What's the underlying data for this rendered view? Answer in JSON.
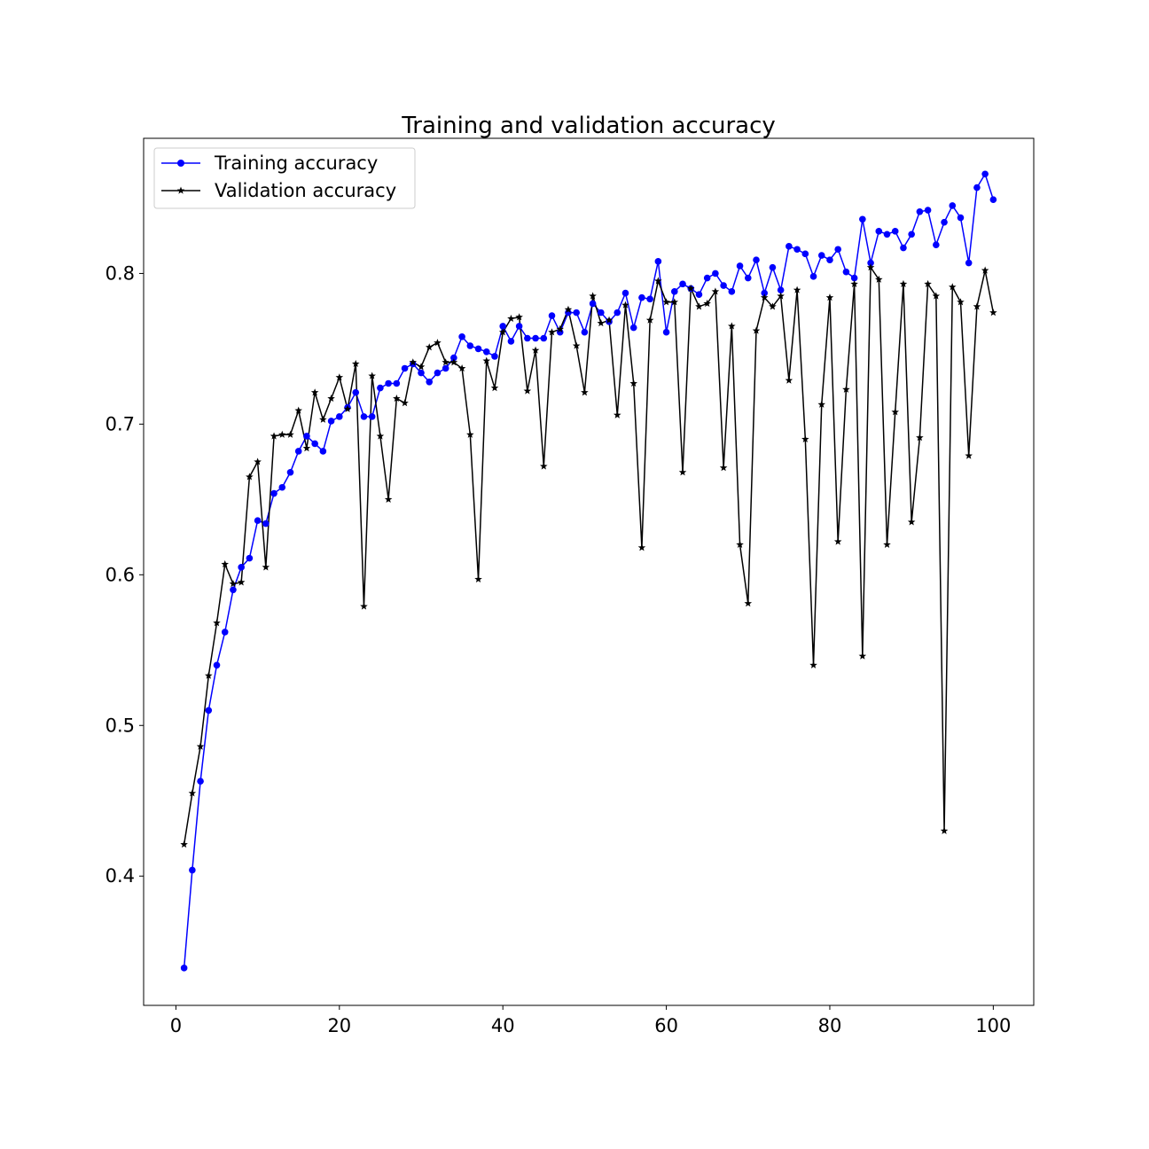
{
  "chart_data": {
    "type": "line",
    "title": "Training and validation accuracy",
    "xlabel": "",
    "ylabel": "",
    "xlim": [
      -3.95,
      104.95
    ],
    "ylim": [
      0.3142,
      0.8897
    ],
    "x_ticks": [
      0,
      20,
      40,
      60,
      80,
      100
    ],
    "y_ticks": [
      0.4,
      0.5,
      0.6,
      0.7,
      0.8
    ],
    "x_tick_labels": [
      "0",
      "20",
      "40",
      "60",
      "80",
      "100"
    ],
    "y_tick_labels": [
      "0.4",
      "0.5",
      "0.6",
      "0.7",
      "0.8"
    ],
    "grid": false,
    "legend_position": "top-left",
    "x": [
      1,
      2,
      3,
      4,
      5,
      6,
      7,
      8,
      9,
      10,
      11,
      12,
      13,
      14,
      15,
      16,
      17,
      18,
      19,
      20,
      21,
      22,
      23,
      24,
      25,
      26,
      27,
      28,
      29,
      30,
      31,
      32,
      33,
      34,
      35,
      36,
      37,
      38,
      39,
      40,
      41,
      42,
      43,
      44,
      45,
      46,
      47,
      48,
      49,
      50,
      51,
      52,
      53,
      54,
      55,
      56,
      57,
      58,
      59,
      60,
      61,
      62,
      63,
      64,
      65,
      66,
      67,
      68,
      69,
      70,
      71,
      72,
      73,
      74,
      75,
      76,
      77,
      78,
      79,
      80,
      81,
      82,
      83,
      84,
      85,
      86,
      87,
      88,
      89,
      90,
      91,
      92,
      93,
      94,
      95,
      96,
      97,
      98,
      99,
      100
    ],
    "series": [
      {
        "name": "Training accuracy",
        "color": "#0000ff",
        "marker": "circle",
        "values": [
          0.339,
          0.404,
          0.463,
          0.51,
          0.54,
          0.562,
          0.59,
          0.605,
          0.611,
          0.636,
          0.634,
          0.654,
          0.658,
          0.668,
          0.682,
          0.692,
          0.687,
          0.682,
          0.702,
          0.705,
          0.711,
          0.721,
          0.705,
          0.705,
          0.724,
          0.727,
          0.727,
          0.737,
          0.74,
          0.734,
          0.728,
          0.734,
          0.737,
          0.744,
          0.758,
          0.752,
          0.75,
          0.748,
          0.745,
          0.765,
          0.755,
          0.765,
          0.757,
          0.757,
          0.757,
          0.772,
          0.761,
          0.774,
          0.774,
          0.761,
          0.78,
          0.774,
          0.768,
          0.774,
          0.787,
          0.764,
          0.784,
          0.783,
          0.808,
          0.761,
          0.788,
          0.793,
          0.79,
          0.786,
          0.797,
          0.8,
          0.792,
          0.788,
          0.805,
          0.797,
          0.809,
          0.787,
          0.804,
          0.789,
          0.818,
          0.816,
          0.813,
          0.798,
          0.812,
          0.809,
          0.816,
          0.801,
          0.797,
          0.836,
          0.807,
          0.828,
          0.826,
          0.828,
          0.817,
          0.826,
          0.841,
          0.842,
          0.819,
          0.834,
          0.845,
          0.837,
          0.807,
          0.857,
          0.866,
          0.849
        ]
      },
      {
        "name": "Validation accuracy",
        "color": "#000000",
        "marker": "star",
        "values": [
          0.421,
          0.455,
          0.486,
          0.533,
          0.568,
          0.607,
          0.594,
          0.595,
          0.665,
          0.675,
          0.605,
          0.692,
          0.693,
          0.693,
          0.709,
          0.684,
          0.721,
          0.703,
          0.717,
          0.731,
          0.71,
          0.74,
          0.579,
          0.732,
          0.692,
          0.65,
          0.717,
          0.714,
          0.741,
          0.738,
          0.751,
          0.754,
          0.741,
          0.741,
          0.737,
          0.693,
          0.597,
          0.742,
          0.724,
          0.761,
          0.77,
          0.771,
          0.722,
          0.749,
          0.672,
          0.761,
          0.763,
          0.776,
          0.752,
          0.721,
          0.785,
          0.767,
          0.769,
          0.706,
          0.779,
          0.727,
          0.618,
          0.769,
          0.795,
          0.781,
          0.781,
          0.668,
          0.79,
          0.778,
          0.78,
          0.788,
          0.671,
          0.765,
          0.62,
          0.581,
          0.762,
          0.784,
          0.778,
          0.785,
          0.729,
          0.789,
          0.69,
          0.54,
          0.713,
          0.784,
          0.622,
          0.723,
          0.793,
          0.546,
          0.804,
          0.796,
          0.62,
          0.708,
          0.793,
          0.635,
          0.691,
          0.793,
          0.785,
          0.43,
          0.791,
          0.781,
          0.679,
          0.778,
          0.802,
          0.774
        ]
      }
    ]
  }
}
